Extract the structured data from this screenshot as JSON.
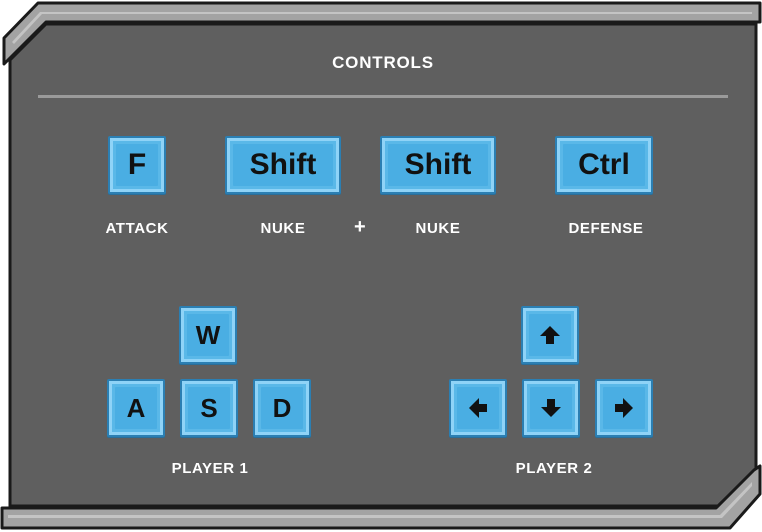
{
  "panel": {
    "title": "CONTROLS",
    "colors": {
      "panel_bg": "#5f5f5f",
      "frame": "#9e9e9e",
      "key_face": "#4aaee3",
      "key_border": "#2b7fb3",
      "text": "#ffffff"
    }
  },
  "actions": {
    "attack": {
      "key": "F",
      "label": "ATTACK"
    },
    "nuke_1": {
      "key": "Shift",
      "label": "NUKE"
    },
    "plus": "+",
    "nuke_2": {
      "key": "Shift",
      "label": "NUKE"
    },
    "defense": {
      "key": "Ctrl",
      "label": "DEFENSE"
    }
  },
  "player1": {
    "label": "PLAYER 1",
    "keys": {
      "up": "W",
      "left": "A",
      "down": "S",
      "right": "D"
    }
  },
  "player2": {
    "label": "PLAYER 2",
    "keys": {
      "up": "arrow-up-icon",
      "left": "arrow-left-icon",
      "down": "arrow-down-icon",
      "right": "arrow-right-icon"
    }
  }
}
